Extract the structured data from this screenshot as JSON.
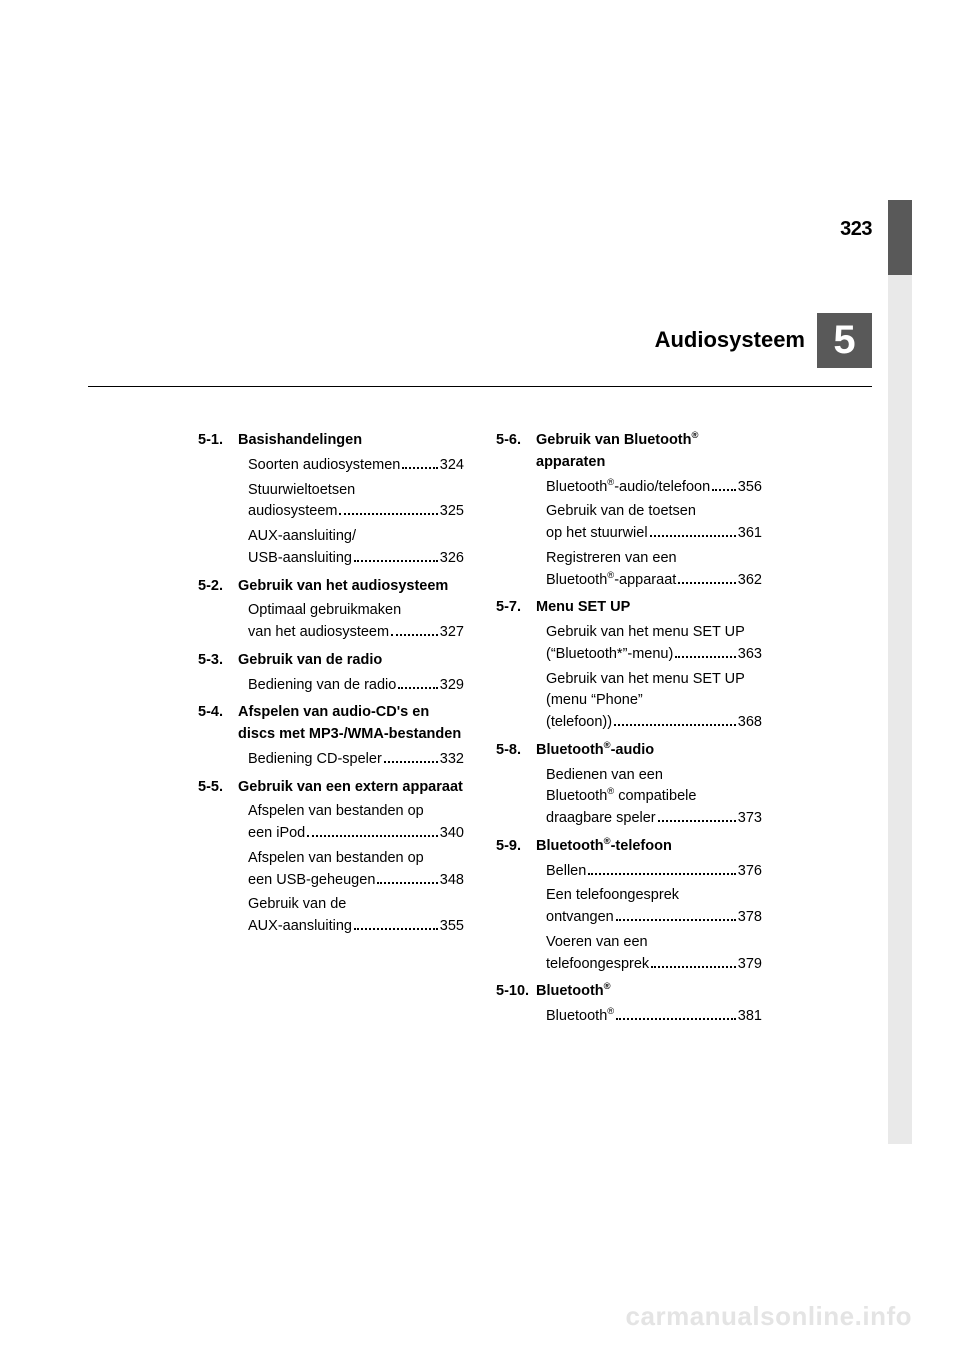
{
  "page_number": "323",
  "chapter": {
    "number": "5",
    "title": "Audiosysteem"
  },
  "colors": {
    "tab_light": "#e9e9e9",
    "tab_dark": "#595959",
    "text": "#000000",
    "background": "#ffffff",
    "watermark": "#e4e4e4"
  },
  "watermark": "carmanualsonline.info",
  "left_column": [
    {
      "num": "5-1.",
      "title": "Basishandelingen",
      "entries": [
        {
          "lines": [
            "Soorten audiosystemen"
          ],
          "page": "324"
        },
        {
          "lines": [
            "Stuurwieltoetsen",
            "audiosysteem"
          ],
          "page": "325"
        },
        {
          "lines": [
            "AUX-aansluiting/",
            "USB-aansluiting"
          ],
          "page": "326"
        }
      ]
    },
    {
      "num": "5-2.",
      "title": "Gebruik van het audiosysteem",
      "entries": [
        {
          "lines": [
            "Optimaal gebruikmaken",
            "van het audiosysteem"
          ],
          "page": "327"
        }
      ]
    },
    {
      "num": "5-3.",
      "title": "Gebruik van de radio",
      "entries": [
        {
          "lines": [
            "Bediening van de radio"
          ],
          "page": "329"
        }
      ]
    },
    {
      "num": "5-4.",
      "title": "Afspelen van audio-CD's en discs met MP3-/WMA-bestanden",
      "entries": [
        {
          "lines": [
            "Bediening CD-speler"
          ],
          "page": "332"
        }
      ]
    },
    {
      "num": "5-5.",
      "title": "Gebruik van een extern apparaat",
      "entries": [
        {
          "lines": [
            "Afspelen van bestanden op",
            "een iPod"
          ],
          "page": "340"
        },
        {
          "lines": [
            "Afspelen van bestanden op",
            "een USB-geheugen"
          ],
          "page": "348"
        },
        {
          "lines": [
            "Gebruik van de",
            "AUX-aansluiting"
          ],
          "page": "355"
        }
      ]
    }
  ],
  "right_column": [
    {
      "num": "5-6.",
      "title_html": "Gebruik van Bluetooth<sup>®</sup> apparaten",
      "entries": [
        {
          "lines_html": [
            "Bluetooth<sup>®</sup>-audio/telefoon"
          ],
          "page": "356"
        },
        {
          "lines": [
            "Gebruik van de toetsen",
            "op het stuurwiel"
          ],
          "page": "361"
        },
        {
          "lines_html": [
            "Registreren van een",
            "Bluetooth<sup>®</sup>-apparaat"
          ],
          "page": "362"
        }
      ]
    },
    {
      "num": "5-7.",
      "title": "Menu SET UP",
      "entries": [
        {
          "lines": [
            "Gebruik van het menu SET UP",
            "(“Bluetooth*”-menu)"
          ],
          "page": "363"
        },
        {
          "lines": [
            "Gebruik van het menu SET UP",
            "(menu “Phone”",
            "(telefoon))"
          ],
          "page": "368"
        }
      ]
    },
    {
      "num": "5-8.",
      "title_html": "Bluetooth<sup>®</sup>-audio",
      "entries": [
        {
          "lines_html": [
            "Bedienen van een",
            "Bluetooth<sup>®</sup> compatibele",
            "draagbare speler"
          ],
          "page": "373"
        }
      ]
    },
    {
      "num": "5-9.",
      "title_html": "Bluetooth<sup>®</sup>-telefoon",
      "entries": [
        {
          "lines": [
            "Bellen"
          ],
          "page": "376"
        },
        {
          "lines": [
            "Een telefoongesprek",
            "ontvangen"
          ],
          "page": "378"
        },
        {
          "lines": [
            "Voeren van een",
            "telefoongesprek"
          ],
          "page": "379"
        }
      ]
    },
    {
      "num": "5-10.",
      "title_html": "Bluetooth<sup>®</sup>",
      "entries": [
        {
          "lines_html": [
            "Bluetooth<sup>®</sup>"
          ],
          "page": "381"
        }
      ]
    }
  ]
}
